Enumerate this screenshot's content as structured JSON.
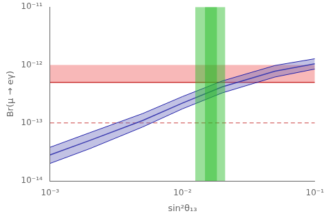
{
  "chart_data": {
    "type": "line",
    "log": true,
    "grid": false,
    "xlabel": "sin²θ₁₃",
    "ylabel": "Br(μ → eγ)",
    "x": [
      0.001,
      0.002,
      0.005,
      0.01,
      0.02,
      0.05,
      0.1
    ],
    "series": [
      {
        "values": [
          2.8e-14,
          5e-14,
          1.1e-13,
          2.2e-13,
          4.2e-13,
          7.8e-13,
          1.05e-12
        ],
        "color": "#2222aa"
      }
    ],
    "band": {
      "lower": [
        2e-14,
        3.6e-14,
        8.5e-14,
        1.75e-13,
        3.3e-13,
        6.2e-13,
        8.5e-13
      ],
      "upper": [
        3.8e-14,
        6.8e-14,
        1.45e-13,
        2.85e-13,
        5.3e-13,
        9.8e-13,
        1.28e-12
      ],
      "color": "#6666bb"
    },
    "hspans": [
      {
        "from": 5e-13,
        "to": 1e-12,
        "color": "#f5a0a0"
      }
    ],
    "hlines": [
      {
        "y": 5e-13,
        "color": "#cc3333",
        "line_style": "solid"
      },
      {
        "y": 1e-13,
        "color": "#cc4444",
        "line_style": "dashed"
      }
    ],
    "vspans": [
      {
        "from": 0.0125,
        "to": 0.021,
        "color": "#22bb22"
      },
      {
        "from": 0.0148,
        "to": 0.0182,
        "color": "#22bb22"
      }
    ],
    "xlim": [
      0.001,
      0.1
    ],
    "ylim": [
      1e-14,
      1e-11
    ],
    "xticks": [
      {
        "value": 0.001,
        "label": "10⁻³"
      },
      {
        "value": 0.01,
        "label": "10⁻²"
      },
      {
        "value": 0.1,
        "label": "10⁻¹"
      }
    ],
    "yticks": [
      {
        "value": 1e-14,
        "label": "10⁻¹⁴"
      },
      {
        "value": 1e-13,
        "label": "10⁻¹³"
      },
      {
        "value": 1e-12,
        "label": "10⁻¹²"
      },
      {
        "value": 1e-11,
        "label": "10⁻¹¹"
      }
    ]
  }
}
